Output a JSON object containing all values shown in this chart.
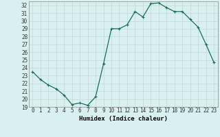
{
  "x": [
    0,
    1,
    2,
    3,
    4,
    5,
    6,
    7,
    8,
    9,
    10,
    11,
    12,
    13,
    14,
    15,
    16,
    17,
    18,
    19,
    20,
    21,
    22,
    23
  ],
  "y": [
    23.5,
    22.5,
    21.8,
    21.3,
    20.5,
    19.3,
    19.5,
    19.2,
    20.3,
    24.5,
    29.0,
    29.0,
    29.5,
    31.2,
    30.5,
    32.2,
    32.3,
    31.7,
    31.2,
    31.2,
    30.2,
    29.2,
    27.0,
    24.7
  ],
  "line_color": "#1a6b5a",
  "marker": "+",
  "markersize": 3,
  "linewidth": 0.9,
  "xlabel": "Humidex (Indice chaleur)",
  "xlabel_fontsize": 6.5,
  "xlabel_fontweight": "bold",
  "bg_color": "#d8f0f0",
  "grid_color": "#c0d8d8",
  "tick_color": "#333333",
  "xlim": [
    -0.5,
    23.5
  ],
  "ylim": [
    19,
    32.5
  ],
  "yticks": [
    19,
    20,
    21,
    22,
    23,
    24,
    25,
    26,
    27,
    28,
    29,
    30,
    31,
    32
  ],
  "xticks": [
    0,
    1,
    2,
    3,
    4,
    5,
    6,
    7,
    8,
    9,
    10,
    11,
    12,
    13,
    14,
    15,
    16,
    17,
    18,
    19,
    20,
    21,
    22,
    23
  ],
  "tick_fontsize": 5.5
}
